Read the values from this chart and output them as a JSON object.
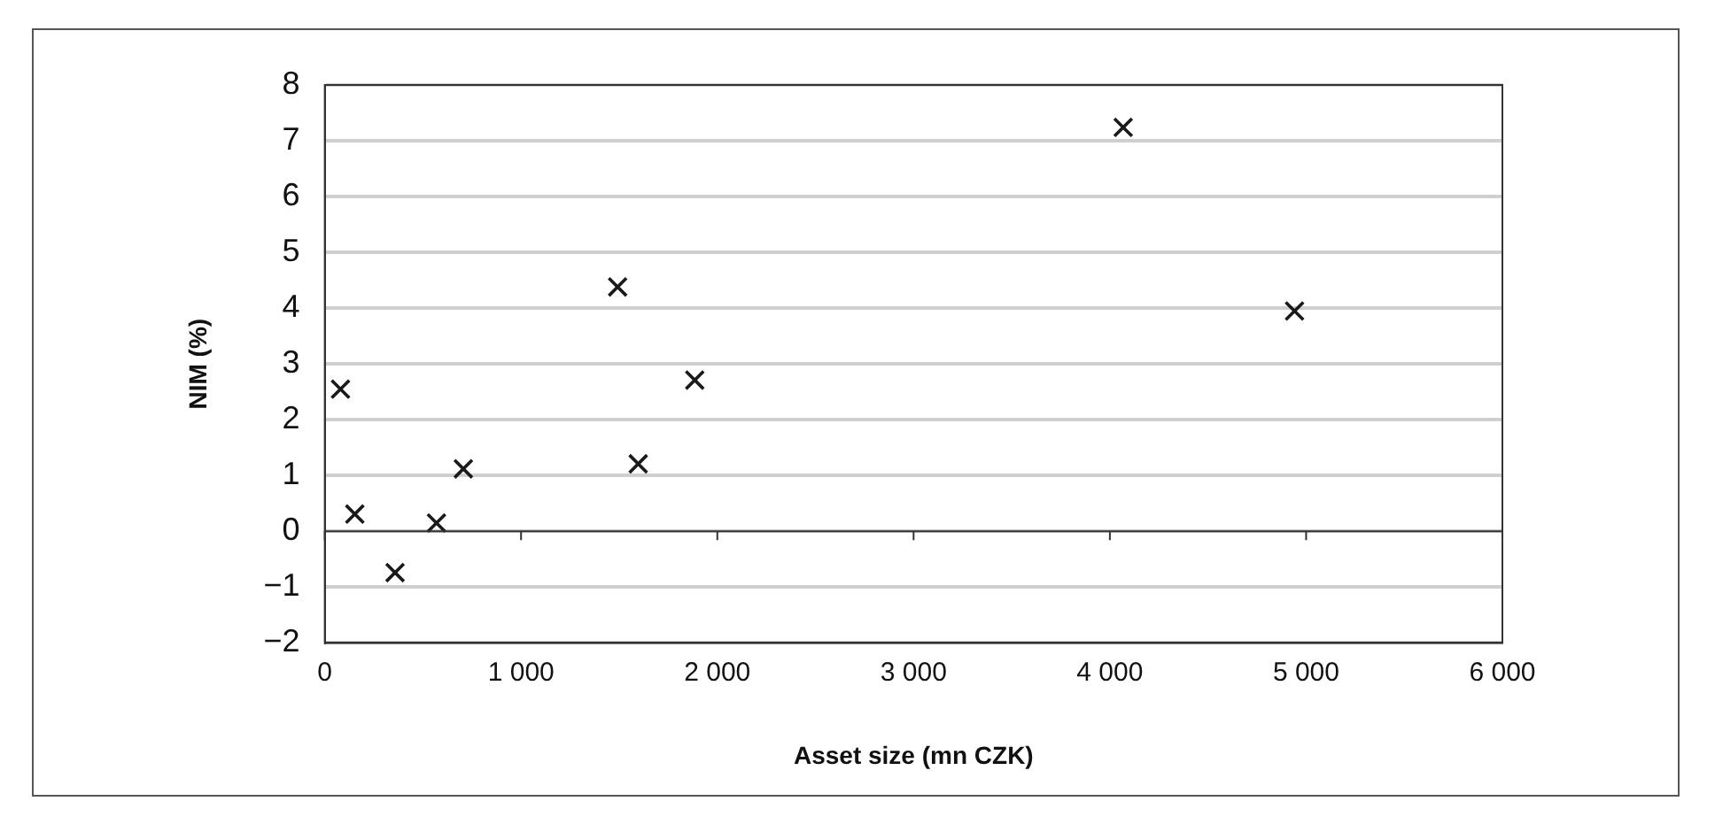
{
  "chart_data": {
    "type": "scatter",
    "xlabel": "Asset size (mn CZK)",
    "ylabel": "NIM (%)",
    "x": [
      80,
      153,
      358,
      569,
      706,
      1492,
      1597,
      1885,
      4068,
      4941
    ],
    "series": [
      {
        "color": "#1a1a1a",
        "values": [
          2.55,
          0.31,
          -0.74,
          0.15,
          1.12,
          4.38,
          1.21,
          2.71,
          7.24,
          3.95
        ]
      }
    ],
    "marker": "cross",
    "xlim": [
      0,
      6000
    ],
    "xticks": [
      0,
      {
        "value": 1000,
        "label": "1 000"
      },
      {
        "value": 2000,
        "label": "2 000"
      },
      {
        "value": 3000,
        "label": "3 000"
      },
      {
        "value": 4000,
        "label": "4 000"
      },
      {
        "value": 5000,
        "label": "5 000"
      },
      {
        "value": 6000,
        "label": "6 000"
      }
    ],
    "ylim": [
      -2,
      8
    ],
    "yticks": [
      {
        "value": -2,
        "label": "−2"
      },
      {
        "value": -1,
        "label": "−1"
      },
      0,
      1,
      2,
      3,
      4,
      5,
      6,
      7,
      8
    ],
    "grid": "y",
    "legend": false
  }
}
